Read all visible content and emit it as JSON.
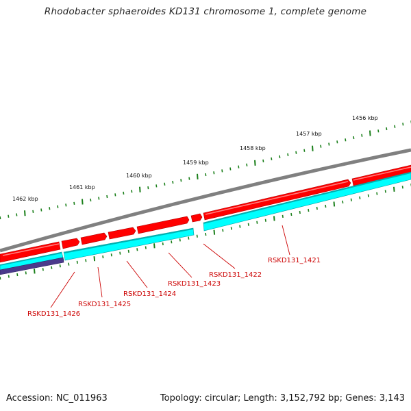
{
  "title": "Rhodobacter sphaeroides KD131 chromosome 1, complete genome",
  "footer": {
    "accession": "Accession: NC_011963",
    "summary": "Topology: circular; Length: 3,152,792 bp; Genes: 3,143"
  },
  "colors": {
    "backbone": "#808080",
    "forward_gene": "#ff0000",
    "forward_gene_highlight": "#ff8080",
    "reverse_gene": "#00ffff",
    "reverse_gene_shade": "#00b0b0",
    "other_feature": "#4b3a8c",
    "tick": "#1a7f1a",
    "label": "#cc0000",
    "leader": "#cc0000"
  },
  "scale_labels": [
    "1456 kbp",
    "1457 kbp",
    "1458 kbp",
    "1459 kbp",
    "1460 kbp",
    "1461 kbp",
    "1462 kbp"
  ],
  "genes": [
    {
      "id": "RSKD131_1421"
    },
    {
      "id": "RSKD131_1422"
    },
    {
      "id": "RSKD131_1423"
    },
    {
      "id": "RSKD131_1424"
    },
    {
      "id": "RSKD131_1425"
    },
    {
      "id": "RSKD131_1426"
    }
  ]
}
